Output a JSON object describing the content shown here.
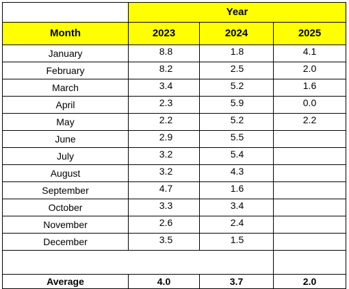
{
  "table": {
    "group_header": "Year",
    "month_header": "Month",
    "year_headers": [
      "2023",
      "2024",
      "2025"
    ],
    "rows": [
      {
        "month": "January",
        "y2023": "8.8",
        "y2024": "1.8",
        "y2025": "4.1"
      },
      {
        "month": "February",
        "y2023": "8.2",
        "y2024": "2.5",
        "y2025": "2.0"
      },
      {
        "month": "March",
        "y2023": "3.4",
        "y2024": "5.2",
        "y2025": "1.6"
      },
      {
        "month": "April",
        "y2023": "2.3",
        "y2024": "5.9",
        "y2025": "0.0"
      },
      {
        "month": "May",
        "y2023": "2.2",
        "y2024": "5.2",
        "y2025": "2.2"
      },
      {
        "month": "June",
        "y2023": "2.9",
        "y2024": "5.5",
        "y2025": ""
      },
      {
        "month": "July",
        "y2023": "3.2",
        "y2024": "5.4",
        "y2025": ""
      },
      {
        "month": "August",
        "y2023": "3.2",
        "y2024": "4.3",
        "y2025": ""
      },
      {
        "month": "September",
        "y2023": "4.7",
        "y2024": "1.6",
        "y2025": ""
      },
      {
        "month": "October",
        "y2023": "3.3",
        "y2024": "3.4",
        "y2025": ""
      },
      {
        "month": "November",
        "y2023": "2.6",
        "y2024": "2.4",
        "y2025": ""
      },
      {
        "month": "December",
        "y2023": "3.5",
        "y2024": "1.5",
        "y2025": ""
      }
    ],
    "average": {
      "label": "Average",
      "y2023": "4.0",
      "y2024": "3.7",
      "y2025": "2.0"
    },
    "colors": {
      "header_fill": "#ffff00",
      "border": "#000000",
      "text": "#000000"
    }
  }
}
